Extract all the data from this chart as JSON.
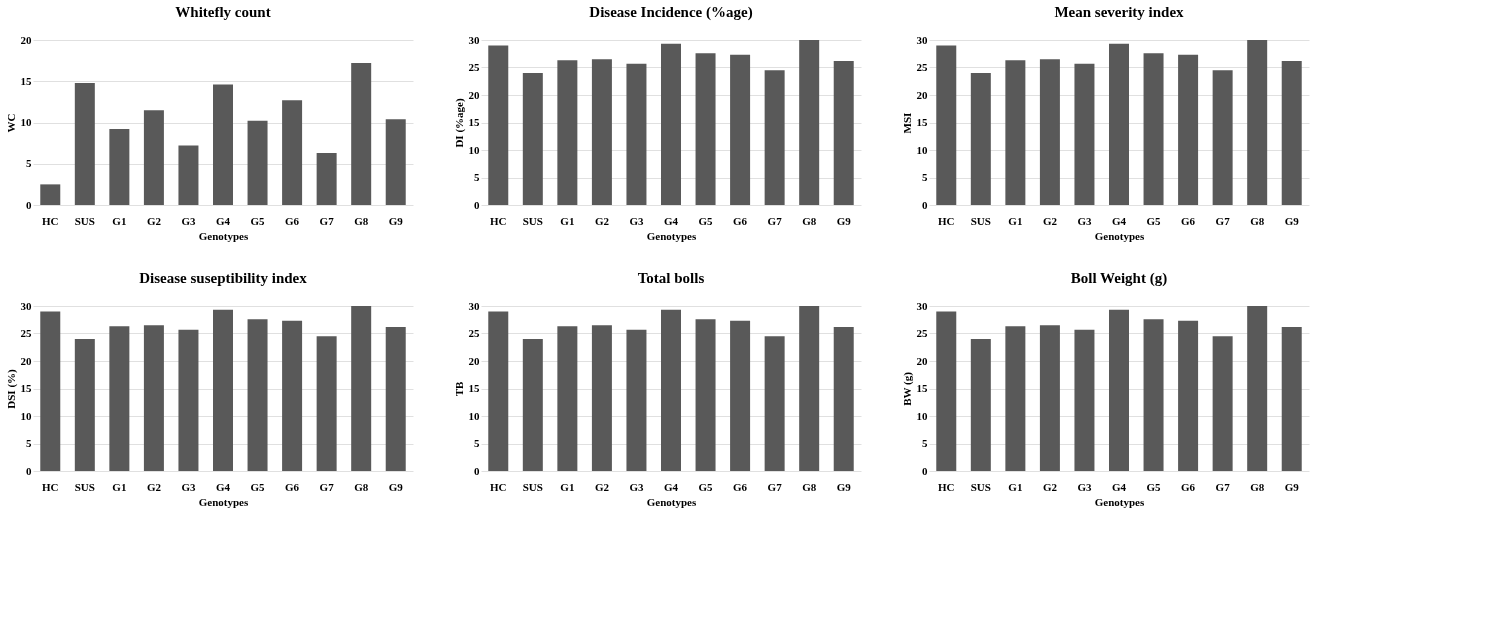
{
  "chart_data": [
    {
      "type": "bar",
      "title": "Whitefly count",
      "xlabel": "Genotypes",
      "ylabel": "WC",
      "categories": [
        "HC",
        "SUS",
        "G1",
        "G2",
        "G3",
        "G4",
        "G5",
        "G6",
        "G7",
        "G8",
        "G9"
      ],
      "values": [
        2.5,
        14.8,
        9.2,
        11.5,
        7.2,
        14.6,
        10.2,
        12.7,
        6.3,
        17.2,
        10.4
      ],
      "color": "#595959",
      "ylim": [
        0,
        20
      ],
      "yticks": [
        0,
        5,
        10,
        15,
        20
      ],
      "grid": "y"
    },
    {
      "type": "bar",
      "title": "Disease Incidence (%age)",
      "xlabel": "Genotypes",
      "ylabel": "DI (%age)",
      "categories": [
        "HC",
        "SUS",
        "G1",
        "G2",
        "G3",
        "G4",
        "G5",
        "G6",
        "G7",
        "G8",
        "G9"
      ],
      "values": [
        29,
        24,
        26.3,
        26.5,
        25.7,
        29.3,
        27.6,
        27.3,
        24.5,
        30,
        26.2
      ],
      "color": "#595959",
      "ylim": [
        0,
        30
      ],
      "yticks": [
        0,
        5,
        10,
        15,
        20,
        25,
        30
      ],
      "grid": "y"
    },
    {
      "type": "bar",
      "title": "Mean severity index",
      "xlabel": "Genotypes",
      "ylabel": "MSI",
      "categories": [
        "HC",
        "SUS",
        "G1",
        "G2",
        "G3",
        "G4",
        "G5",
        "G6",
        "G7",
        "G8",
        "G9"
      ],
      "values": [
        29,
        24,
        26.3,
        26.5,
        25.7,
        29.3,
        27.6,
        27.3,
        24.5,
        30,
        26.2
      ],
      "color": "#595959",
      "ylim": [
        0,
        30
      ],
      "yticks": [
        0,
        5,
        10,
        15,
        20,
        25,
        30
      ],
      "grid": "y"
    },
    {
      "type": "bar",
      "title": "Disease suseptibility index",
      "xlabel": "Genotypes",
      "ylabel": "DSI (%)",
      "categories": [
        "HC",
        "SUS",
        "G1",
        "G2",
        "G3",
        "G4",
        "G5",
        "G6",
        "G7",
        "G8",
        "G9"
      ],
      "values": [
        29,
        24,
        26.3,
        26.5,
        25.7,
        29.3,
        27.6,
        27.3,
        24.5,
        30,
        26.2
      ],
      "color": "#595959",
      "ylim": [
        0,
        30
      ],
      "yticks": [
        0,
        5,
        10,
        15,
        20,
        25,
        30
      ],
      "grid": "y"
    },
    {
      "type": "bar",
      "title": "Total bolls",
      "xlabel": "Genotypes",
      "ylabel": "TB",
      "categories": [
        "HC",
        "SUS",
        "G1",
        "G2",
        "G3",
        "G4",
        "G5",
        "G6",
        "G7",
        "G8",
        "G9"
      ],
      "values": [
        29,
        24,
        26.3,
        26.5,
        25.7,
        29.3,
        27.6,
        27.3,
        24.5,
        30,
        26.2
      ],
      "color": "#595959",
      "ylim": [
        0,
        30
      ],
      "yticks": [
        0,
        5,
        10,
        15,
        20,
        25,
        30
      ],
      "grid": "y"
    },
    {
      "type": "bar",
      "title": "Boll Weight (g)",
      "xlabel": "Genotypes",
      "ylabel": "BW (g)",
      "categories": [
        "HC",
        "SUS",
        "G1",
        "G2",
        "G3",
        "G4",
        "G5",
        "G6",
        "G7",
        "G8",
        "G9"
      ],
      "values": [
        29,
        24,
        26.3,
        26.5,
        25.7,
        29.3,
        27.6,
        27.3,
        24.5,
        30,
        26.2
      ],
      "color": "#595959",
      "ylim": [
        0,
        30
      ],
      "yticks": [
        0,
        5,
        10,
        15,
        20,
        25,
        30
      ],
      "grid": "y"
    }
  ]
}
